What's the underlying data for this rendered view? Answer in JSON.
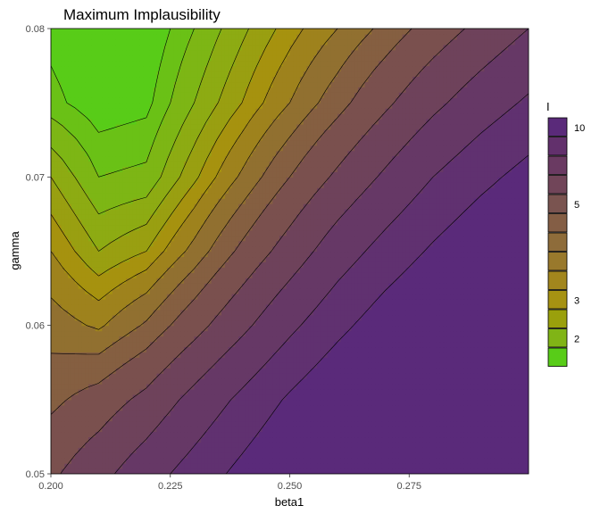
{
  "chart_data": {
    "type": "contour",
    "title": "Maximum Implausibility",
    "xlabel": "beta1",
    "ylabel": "gamma",
    "xlim": [
      0.2,
      0.3
    ],
    "ylim": [
      0.05,
      0.08
    ],
    "x_ticks": [
      "0.200",
      "0.225",
      "0.250",
      "0.275"
    ],
    "x_tick_values": [
      0.2,
      0.225,
      0.25,
      0.275
    ],
    "y_ticks": [
      "0.05",
      "0.06",
      "0.07",
      "0.08"
    ],
    "y_tick_values": [
      0.05,
      0.06,
      0.07,
      0.08
    ],
    "legend": {
      "title": "I",
      "placement": "right",
      "labels": [
        "10",
        "5",
        "3",
        "2"
      ],
      "label_levels": [
        10,
        5,
        3,
        2
      ],
      "colors": [
        "#5a2a7a",
        "#62306c",
        "#6a3a62",
        "#714559",
        "#7a5450",
        "#845e45",
        "#8e6c3a",
        "#99792c",
        "#a2861d",
        "#a69212",
        "#9aa00c",
        "#80b416",
        "#58cc18"
      ]
    },
    "grid": false,
    "x": [
      0.2,
      0.21,
      0.22,
      0.23,
      0.24,
      0.25,
      0.26,
      0.27,
      0.28,
      0.29,
      0.3
    ],
    "y": [
      0.05,
      0.055,
      0.06,
      0.065,
      0.07,
      0.075,
      0.08
    ],
    "z": [
      [
        5.8,
        6.8,
        8.0,
        9.2,
        10.4,
        11.6,
        12.6,
        13.4,
        14.0,
        14.5,
        14.8
      ],
      [
        4.8,
        5.4,
        6.3,
        7.6,
        8.9,
        10.2,
        11.4,
        12.4,
        13.2,
        13.8,
        14.2
      ],
      [
        4.0,
        3.6,
        4.4,
        5.6,
        6.9,
        8.3,
        9.6,
        10.8,
        11.8,
        12.6,
        13.2
      ],
      [
        3.2,
        2.4,
        2.8,
        3.9,
        5.2,
        6.5,
        7.9,
        9.1,
        10.2,
        11.2,
        12.0
      ],
      [
        2.4,
        1.6,
        1.7,
        2.7,
        3.8,
        5.0,
        6.2,
        7.4,
        8.6,
        9.6,
        10.5
      ],
      [
        1.4,
        1.1,
        1.2,
        2.0,
        2.8,
        3.7,
        4.7,
        5.8,
        6.9,
        7.9,
        8.8
      ],
      [
        1.2,
        1.0,
        1.0,
        1.6,
        2.3,
        3.0,
        3.7,
        4.5,
        5.4,
        6.3,
        7.2
      ]
    ],
    "levels": [
      1.0,
      1.3,
      1.6,
      2.0,
      2.4,
      2.8,
      3.2,
      3.7,
      4.3,
      5.0,
      6.0,
      7.2,
      8.6,
      10.0,
      15.0
    ]
  }
}
